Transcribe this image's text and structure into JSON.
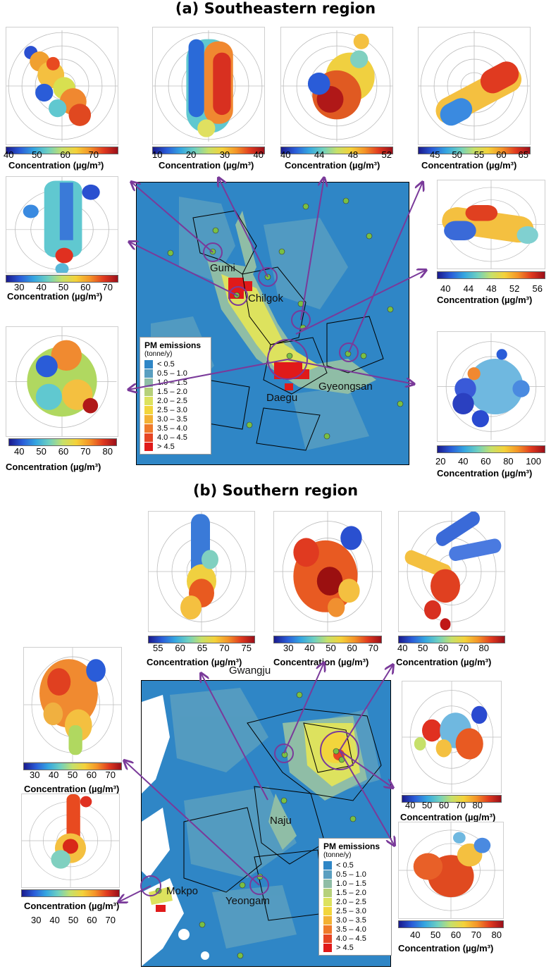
{
  "panel_a": {
    "title": "(a) Southeastern region",
    "concentration_label": "Concentration (µg/m³)",
    "legend_title": "PM emissions",
    "legend_subtitle": "(tonne/y)",
    "legend_items": [
      "< 0.5",
      "0.5 – 1.0",
      "1.0 – 1.5",
      "1.5 – 2.0",
      "2.0 – 2.5",
      "2.5 – 3.0",
      "3.0 – 3.5",
      "3.5 – 4.0",
      "4.0 – 4.5",
      "> 4.5"
    ],
    "legend_colors": [
      "#2f86c6",
      "#5a9fc0",
      "#8fbda6",
      "#b6d17a",
      "#dde25e",
      "#f2d53c",
      "#f3b134",
      "#ef7a2b",
      "#e64524",
      "#e01a1a"
    ],
    "places": [
      "Gumi",
      "Chilgok",
      "Daegu",
      "Gyeongsan"
    ],
    "scales": [
      [
        "40",
        "50",
        "60",
        "70"
      ],
      [
        "10",
        "20",
        "30",
        "40"
      ],
      [
        "40",
        "44",
        "48",
        "52"
      ],
      [
        "45",
        "50",
        "55",
        "60",
        "65"
      ],
      [
        "30",
        "40",
        "50",
        "60",
        "70"
      ],
      [
        "40",
        "44",
        "48",
        "52",
        "56"
      ],
      [
        "40",
        "50",
        "60",
        "70",
        "80"
      ],
      [
        "20",
        "40",
        "60",
        "80",
        "100"
      ]
    ]
  },
  "panel_b": {
    "title": "(b) Southern region",
    "concentration_label": "Concentration (µg/m³)",
    "legend_title": "PM emissions",
    "legend_subtitle": "(tonne/y)",
    "legend_items": [
      "< 0.5",
      "0.5 – 1.0",
      "1.0 – 1.5",
      "1.5 – 2.0",
      "2.0 – 2.5",
      "2.5 – 3.0",
      "3.0 – 3.5",
      "3.5 – 4.0",
      "4.0 – 4.5",
      "> 4.5"
    ],
    "places": [
      "Gwangju",
      "Naju",
      "Mokpo",
      "Yeongam"
    ],
    "scales": [
      [
        "55",
        "60",
        "65",
        "70",
        "75"
      ],
      [
        "30",
        "40",
        "50",
        "60",
        "70"
      ],
      [
        "40",
        "50",
        "60",
        "70",
        "80"
      ],
      [
        "30",
        "40",
        "50",
        "60",
        "70"
      ],
      [
        "30",
        "40",
        "50",
        "60",
        "70"
      ],
      [
        "40",
        "50",
        "60",
        "70",
        "80"
      ],
      [
        "40",
        "50",
        "60",
        "70",
        "80"
      ]
    ]
  }
}
